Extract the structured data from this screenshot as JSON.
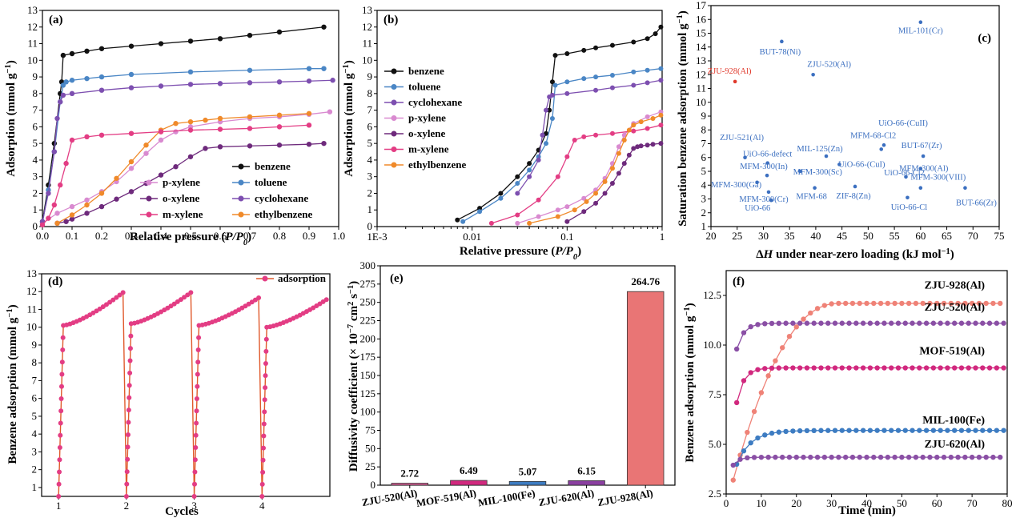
{
  "chart_data": [
    {
      "panel": "(a)",
      "type": "line",
      "xlabel": "Relative pressure (P/P0)",
      "ylabel": "Adsorption (mmol g-1)",
      "xlim": [
        0,
        1.0
      ],
      "ylim": [
        0,
        13
      ],
      "xticks": [
        "0.0",
        "0.1",
        "0.2",
        "0.3",
        "0.4",
        "0.5",
        "0.6",
        "0.7",
        "0.8",
        "0.9",
        "1.0"
      ],
      "yticks": [
        "0",
        "1",
        "2",
        "3",
        "4",
        "5",
        "6",
        "7",
        "8",
        "9",
        "10",
        "11",
        "12",
        "13"
      ],
      "legend": "bottom-right",
      "series": [
        {
          "name": "benzene",
          "color": "#111111",
          "x": [
            0.0,
            0.02,
            0.04,
            0.06,
            0.065,
            0.07,
            0.1,
            0.15,
            0.2,
            0.3,
            0.4,
            0.5,
            0.6,
            0.7,
            0.8,
            0.95
          ],
          "y": [
            0.3,
            2.5,
            5.0,
            8.0,
            8.7,
            10.3,
            10.4,
            10.55,
            10.7,
            10.85,
            11.0,
            11.15,
            11.3,
            11.5,
            11.7,
            12.0
          ]
        },
        {
          "name": "toluene",
          "color": "#4a86c5",
          "x": [
            0.0,
            0.02,
            0.04,
            0.06,
            0.07,
            0.08,
            0.1,
            0.15,
            0.2,
            0.3,
            0.5,
            0.7,
            0.9,
            0.95
          ],
          "y": [
            0.2,
            2.2,
            4.5,
            7.5,
            8.5,
            8.7,
            8.8,
            8.9,
            9.0,
            9.15,
            9.3,
            9.4,
            9.5,
            9.5
          ]
        },
        {
          "name": "p-xylene",
          "color": "#d98ad0",
          "x": [
            0.0,
            0.05,
            0.1,
            0.15,
            0.2,
            0.25,
            0.3,
            0.35,
            0.4,
            0.45,
            0.5,
            0.6,
            0.7,
            0.8,
            0.9,
            0.97
          ],
          "y": [
            0.2,
            0.8,
            1.2,
            1.6,
            2.1,
            2.7,
            3.5,
            4.4,
            5.2,
            5.7,
            6.0,
            6.3,
            6.5,
            6.6,
            6.75,
            6.9
          ]
        },
        {
          "name": "cyclohexane",
          "color": "#7d4fb0",
          "x": [
            0.0,
            0.02,
            0.04,
            0.05,
            0.06,
            0.07,
            0.1,
            0.2,
            0.3,
            0.4,
            0.5,
            0.6,
            0.7,
            0.8,
            0.9,
            0.98
          ],
          "y": [
            0.3,
            2.0,
            4.5,
            6.5,
            7.5,
            7.9,
            8.0,
            8.2,
            8.35,
            8.45,
            8.55,
            8.6,
            8.65,
            8.7,
            8.75,
            8.8
          ]
        },
        {
          "name": "o-xylene",
          "color": "#6e2a7c",
          "x": [
            0.05,
            0.08,
            0.1,
            0.15,
            0.2,
            0.25,
            0.3,
            0.35,
            0.4,
            0.45,
            0.5,
            0.55,
            0.6,
            0.7,
            0.8,
            0.9,
            0.95
          ],
          "y": [
            0.2,
            0.3,
            0.45,
            0.8,
            1.2,
            1.65,
            2.1,
            2.6,
            3.1,
            3.6,
            4.2,
            4.7,
            4.8,
            4.85,
            4.9,
            4.95,
            5.0
          ]
        },
        {
          "name": "ethylbenzene",
          "color": "#f08a2a",
          "x": [
            0.05,
            0.1,
            0.15,
            0.2,
            0.25,
            0.3,
            0.35,
            0.4,
            0.45,
            0.5,
            0.55,
            0.6,
            0.7,
            0.8,
            0.9
          ],
          "y": [
            0.2,
            0.7,
            1.3,
            2.0,
            2.9,
            3.9,
            4.9,
            5.8,
            6.2,
            6.3,
            6.4,
            6.5,
            6.6,
            6.7,
            6.8
          ]
        },
        {
          "name": "m-xylene",
          "color": "#e33d84",
          "x": [
            0.0,
            0.02,
            0.04,
            0.06,
            0.08,
            0.1,
            0.15,
            0.2,
            0.3,
            0.4,
            0.5,
            0.6,
            0.7,
            0.8,
            0.9
          ],
          "y": [
            0.1,
            0.5,
            1.3,
            2.5,
            3.8,
            5.2,
            5.4,
            5.5,
            5.6,
            5.7,
            5.8,
            5.85,
            5.9,
            6.0,
            6.1
          ]
        }
      ]
    },
    {
      "panel": "(b)",
      "type": "line",
      "xscale": "log",
      "xlabel": "Relative pressure (P/P0)",
      "ylabel": "Adsorption (mmol g-1)",
      "xlim": [
        0.001,
        1
      ],
      "ylim": [
        0,
        13
      ],
      "xticks": [
        "1E-3",
        "0.01",
        "0.1",
        "1"
      ],
      "yticks": [
        "0",
        "1",
        "2",
        "3",
        "4",
        "5",
        "6",
        "7",
        "8",
        "9",
        "10",
        "11",
        "12",
        "13"
      ],
      "legend": "top-left",
      "series": [
        {
          "name": "benzene",
          "color": "#111111",
          "x": [
            0.007,
            0.012,
            0.02,
            0.03,
            0.04,
            0.05,
            0.06,
            0.065,
            0.07,
            0.075,
            0.1,
            0.15,
            0.2,
            0.3,
            0.5,
            0.7,
            0.85,
            0.97
          ],
          "y": [
            0.4,
            1.1,
            2.0,
            3.0,
            3.8,
            4.6,
            5.6,
            7.0,
            8.7,
            10.3,
            10.4,
            10.6,
            10.75,
            10.9,
            11.1,
            11.3,
            11.6,
            12.0
          ]
        },
        {
          "name": "toluene",
          "color": "#4a86c5",
          "x": [
            0.008,
            0.012,
            0.02,
            0.03,
            0.04,
            0.05,
            0.06,
            0.07,
            0.075,
            0.1,
            0.15,
            0.2,
            0.3,
            0.5,
            0.7,
            0.97
          ],
          "y": [
            0.3,
            0.9,
            1.7,
            2.6,
            3.4,
            4.2,
            5.0,
            6.5,
            8.5,
            8.7,
            8.9,
            9.0,
            9.1,
            9.3,
            9.4,
            9.5
          ]
        },
        {
          "name": "cyclohexane",
          "color": "#7d4fb0",
          "x": [
            0.03,
            0.04,
            0.05,
            0.055,
            0.06,
            0.065,
            0.07,
            0.1,
            0.2,
            0.3,
            0.5,
            0.7,
            0.97
          ],
          "y": [
            2.0,
            3.0,
            4.0,
            5.5,
            7.0,
            7.8,
            7.9,
            8.0,
            8.2,
            8.35,
            8.5,
            8.65,
            8.8
          ]
        },
        {
          "name": "p-xylene",
          "color": "#d98ad0",
          "x": [
            0.03,
            0.05,
            0.08,
            0.1,
            0.15,
            0.2,
            0.25,
            0.3,
            0.35,
            0.4,
            0.5,
            0.7,
            0.97
          ],
          "y": [
            0.2,
            0.6,
            1.0,
            1.2,
            1.7,
            2.2,
            2.9,
            3.8,
            4.8,
            5.5,
            6.2,
            6.6,
            6.9
          ]
        },
        {
          "name": "o-xylene",
          "color": "#6e2a7c",
          "x": [
            0.1,
            0.15,
            0.2,
            0.25,
            0.3,
            0.35,
            0.4,
            0.45,
            0.5,
            0.55,
            0.6,
            0.7,
            0.8,
            0.97
          ],
          "y": [
            0.3,
            0.9,
            1.4,
            2.0,
            2.6,
            3.2,
            3.8,
            4.3,
            4.7,
            4.8,
            4.85,
            4.9,
            4.95,
            5.0
          ]
        },
        {
          "name": "m-xylene",
          "color": "#e33d84",
          "x": [
            0.016,
            0.03,
            0.05,
            0.08,
            0.1,
            0.12,
            0.15,
            0.2,
            0.3,
            0.5,
            0.7,
            0.97
          ],
          "y": [
            0.2,
            0.7,
            1.6,
            3.0,
            4.2,
            5.2,
            5.4,
            5.5,
            5.6,
            5.75,
            5.9,
            6.1
          ]
        },
        {
          "name": "ethylbenzene",
          "color": "#f08a2a",
          "x": [
            0.04,
            0.08,
            0.12,
            0.16,
            0.2,
            0.25,
            0.3,
            0.35,
            0.4,
            0.45,
            0.5,
            0.6,
            0.8,
            0.97
          ],
          "y": [
            0.2,
            0.6,
            1.0,
            1.5,
            2.0,
            2.7,
            3.5,
            4.4,
            5.2,
            5.8,
            6.1,
            6.3,
            6.5,
            6.7
          ]
        }
      ]
    },
    {
      "panel": "(c)",
      "type": "scatter",
      "xlabel": "ΔH under near-zero loading (kJ mol−1)",
      "ylabel": "Saturation benzene adsorption (mmol g−1)",
      "xlim": [
        20,
        75
      ],
      "ylim": [
        1,
        17
      ],
      "xticks": [
        "20",
        "25",
        "30",
        "35",
        "40",
        "45",
        "50",
        "55",
        "60",
        "65",
        "70",
        "75"
      ],
      "yticks": [
        "1",
        "2",
        "3",
        "4",
        "5",
        "6",
        "7",
        "8",
        "9",
        "10",
        "11",
        "12",
        "13",
        "14",
        "15",
        "16",
        "17"
      ],
      "points": [
        {
          "label": "MIL-101(Cr)",
          "x": 60,
          "y": 15.8,
          "color": "#3b6fc0"
        },
        {
          "label": "BUT-78(Ni)",
          "x": 33.5,
          "y": 14.4,
          "color": "#3b6fc0"
        },
        {
          "label": "ZJU-520(Al)",
          "x": 39.5,
          "y": 12.0,
          "color": "#3b6fc0"
        },
        {
          "label": "ZJU-928(Al)",
          "x": 24.6,
          "y": 11.5,
          "color": "#e0392b"
        },
        {
          "label": "ZJU-521(Al)",
          "x": 26.5,
          "y": 6.0,
          "color": "#3b6fc0"
        },
        {
          "label": "UiO-66-defect",
          "x": 30.8,
          "y": 5.6,
          "color": "#3b6fc0"
        },
        {
          "label": "MIL-125(Zn)",
          "x": 42.0,
          "y": 6.1,
          "color": "#3b6fc0"
        },
        {
          "label": "MFM-68-Cl2",
          "x": 52.5,
          "y": 6.6,
          "color": "#3b6fc0"
        },
        {
          "label": "UiO-66-(CuII)",
          "x": 53.0,
          "y": 6.9,
          "color": "#3b6fc0"
        },
        {
          "label": "BUT-67(Zr)",
          "x": 60.5,
          "y": 6.1,
          "color": "#3b6fc0"
        },
        {
          "label": "UiO-66-(CuI)",
          "x": 44.5,
          "y": 5.5,
          "color": "#3b6fc0"
        },
        {
          "label": "MFM-300(Al)",
          "x": 60,
          "y": 5.2,
          "color": "#3b6fc0"
        },
        {
          "label": "MFM-300(In)",
          "x": 30.7,
          "y": 4.7,
          "color": "#3b6fc0"
        },
        {
          "label": "MFM-300(Sc)",
          "x": 37.0,
          "y": 5.0,
          "color": "#3b6fc0"
        },
        {
          "label": "UiO-66-Cl2",
          "x": 57.2,
          "y": 4.6,
          "color": "#3b6fc0"
        },
        {
          "label": "MFM-300(VIII)",
          "x": 60,
          "y": 3.8,
          "color": "#3b6fc0"
        },
        {
          "label": "MFM-300(Ga)",
          "x": 28.8,
          "y": 4.2,
          "color": "#3b6fc0"
        },
        {
          "label": "MFM-300(Cr)",
          "x": 31.0,
          "y": 3.5,
          "color": "#3b6fc0"
        },
        {
          "label": "MFM-68",
          "x": 39.8,
          "y": 3.8,
          "color": "#3b6fc0"
        },
        {
          "label": "ZIF-8(Zn)",
          "x": 47.5,
          "y": 3.9,
          "color": "#3b6fc0"
        },
        {
          "label": "UiO-66",
          "x": 31.5,
          "y": 2.9,
          "color": "#3b6fc0"
        },
        {
          "label": "UiO-66-Cl",
          "x": 57.5,
          "y": 3.1,
          "color": "#3b6fc0"
        },
        {
          "label": "BUT-66(Zr)",
          "x": 68.5,
          "y": 3.8,
          "color": "#3b6fc0"
        }
      ]
    },
    {
      "panel": "(d)",
      "type": "line",
      "xlabel": "Cycles",
      "ylabel": "Benzene adsorption (mmol g-1)",
      "xlim": [
        0.75,
        5.0
      ],
      "ylim": [
        0.5,
        13
      ],
      "xticks": [
        "1",
        "2",
        "3",
        "4"
      ],
      "yticks": [
        "1",
        "2",
        "3",
        "4",
        "5",
        "6",
        "7",
        "8",
        "9",
        "10",
        "11",
        "12",
        "13"
      ],
      "legend": "top-right",
      "series": [
        {
          "name": "adsorption",
          "color": "#e33d84",
          "line_color": "#e0592b",
          "cycle_start": [
            1,
            2,
            3,
            4
          ],
          "cycle_low": 0.5,
          "cycle_knee": [
            10.1,
            10.2,
            10.1,
            10.0
          ],
          "cycle_end": [
            11.95,
            11.95,
            11.65,
            11.55
          ]
        }
      ]
    },
    {
      "panel": "(e)",
      "type": "bar",
      "ylabel": "Diffusivity coefficient (× 10−7 cm2 s−1)",
      "ylim": [
        0,
        300
      ],
      "yticks": [
        "0",
        "25",
        "50",
        "75",
        "100",
        "125",
        "150",
        "175",
        "200",
        "225",
        "250",
        "275",
        "300"
      ],
      "categories": [
        "ZJU-520(Al)",
        "MOF-519(Al)",
        "MIL-100(Fe)",
        "ZJU-620(Al)",
        "ZJU-928(Al)"
      ],
      "values": [
        2.72,
        6.49,
        5.07,
        6.15,
        264.76
      ],
      "value_labels": [
        "2.72",
        "6.49",
        "5.07",
        "6.15",
        "264.76"
      ],
      "colors": [
        "#d65a92",
        "#d1287e",
        "#3d7cc2",
        "#8a3fa0",
        "#e97575"
      ]
    },
    {
      "panel": "(f)",
      "type": "line",
      "xlabel": "Time (min)",
      "ylabel": "Benzene adsorption (mmol g-1)",
      "xlim": [
        0,
        80
      ],
      "ylim": [
        2.5,
        13.75
      ],
      "xticks": [
        "0",
        "10",
        "20",
        "30",
        "40",
        "50",
        "60",
        "70",
        "80"
      ],
      "yticks": [
        "2.5",
        "5.0",
        "7.5",
        "10.0",
        "12.5"
      ],
      "series": [
        {
          "name": "ZJU-928(Al)",
          "color": "#ef8277",
          "start": 2,
          "y0": 3.2,
          "ymax": 12.1,
          "tau": 8.0
        },
        {
          "name": "ZJU-520(Al)",
          "color": "#8a4fa5",
          "start": 3,
          "y0": 9.8,
          "ymax": 11.1,
          "tau": 2.0
        },
        {
          "name": "MOF-519(Al)",
          "color": "#d1287e",
          "start": 3,
          "y0": 7.1,
          "ymax": 8.85,
          "tau": 2.0
        },
        {
          "name": "MIL-100(Fe)",
          "color": "#3d7cc2",
          "start": 3,
          "y0": 4.0,
          "ymax": 5.7,
          "tau": 4.0
        },
        {
          "name": "ZJU-620(Al)",
          "color": "#8a4fa5",
          "start": 2,
          "y0": 3.95,
          "ymax": 4.35,
          "tau": 1.5
        }
      ],
      "label_positions_y": [
        13.0,
        11.9,
        9.7,
        6.2,
        5.0
      ]
    }
  ]
}
